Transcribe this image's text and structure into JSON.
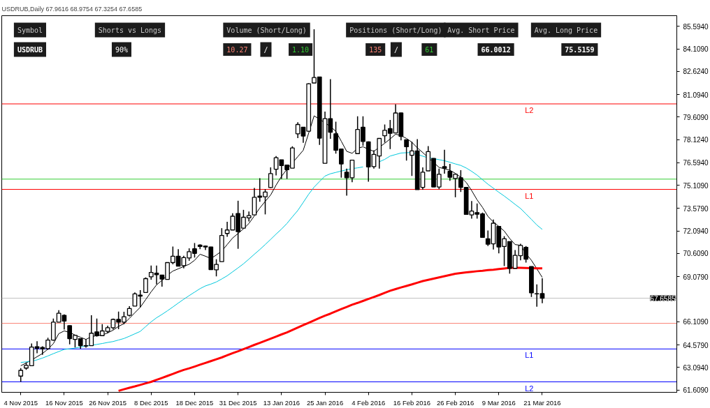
{
  "chart_data": {
    "type": "candlestick",
    "title": "USDRUB,Daily 67.9616 68.9754 67.3254 67.6585",
    "annotations": [
      "Symbol",
      "Shorts vs Longs",
      "Volume (Short/Long)",
      "Positions (Short/Long)",
      "Avg. Short Price",
      "Avg. Long Price",
      "USDRUB",
      "90%",
      "10.27",
      "/",
      "1.10",
      "135",
      "/",
      "61",
      "66.0012",
      "75.5159"
    ],
    "categories": [
      "4 Nov 2015",
      null,
      null,
      null,
      null,
      null,
      null,
      null,
      "16 Nov 2015",
      null,
      null,
      null,
      null,
      null,
      null,
      null,
      "26 Nov 2015",
      null,
      null,
      null,
      null,
      null,
      null,
      null,
      "8 Dec 2015",
      null,
      null,
      null,
      null,
      null,
      null,
      null,
      "18 Dec 2015",
      null,
      null,
      null,
      null,
      null,
      null,
      null,
      "31 Dec 2015",
      null,
      null,
      null,
      null,
      null,
      null,
      null,
      "13 Jan 2016",
      null,
      null,
      null,
      null,
      null,
      null,
      null,
      "25 Jan 2016",
      null,
      null,
      null,
      null,
      null,
      null,
      null,
      "4 Feb 2016",
      null,
      null,
      null,
      null,
      null,
      null,
      null,
      "16 Feb 2016",
      null,
      null,
      null,
      null,
      null,
      null,
      null,
      "26 Feb 2016",
      null,
      null,
      null,
      null,
      null,
      null,
      null,
      "9 Mar 2016",
      null,
      null,
      null,
      null,
      null,
      null,
      null,
      "21 Mar 2016"
    ],
    "ohlc": [
      [
        62.52,
        63.05,
        62.14,
        62.9
      ],
      [
        63.05,
        63.42,
        62.93,
        63.23
      ],
      [
        63.2,
        64.67,
        63.18,
        64.44
      ],
      [
        64.46,
        64.82,
        64.03,
        64.36
      ],
      [
        64.41,
        64.49,
        63.92,
        64.32
      ],
      [
        64.33,
        65.05,
        64.26,
        64.9
      ],
      [
        64.9,
        66.32,
        64.86,
        66.08
      ],
      [
        66.08,
        66.87,
        66.06,
        66.67
      ],
      [
        66.53,
        66.59,
        65.59,
        66.15
      ],
      [
        65.85,
        65.87,
        64.61,
        64.99
      ],
      [
        64.94,
        65.24,
        64.41,
        65.21
      ],
      [
        64.99,
        65.01,
        64.33,
        64.53
      ],
      [
        64.53,
        64.92,
        64.39,
        64.51
      ],
      [
        64.53,
        66.53,
        64.52,
        65.35
      ],
      [
        65.44,
        66.32,
        65.12,
        65.19
      ],
      [
        65.19,
        65.95,
        65.18,
        65.5
      ],
      [
        65.47,
        65.85,
        65.34,
        65.71
      ],
      [
        65.71,
        66.32,
        65.59,
        66.26
      ],
      [
        66.26,
        66.78,
        65.62,
        66.08
      ],
      [
        66.08,
        66.77,
        65.95,
        66.44
      ],
      [
        66.53,
        67.13,
        66.45,
        66.98
      ],
      [
        67.14,
        68.04,
        67.13,
        67.94
      ],
      [
        67.86,
        68.19,
        67.07,
        67.8
      ],
      [
        68.04,
        69.03,
        68.04,
        68.95
      ],
      [
        69.07,
        69.81,
        68.88,
        69.36
      ],
      [
        69.31,
        69.81,
        68.57,
        69.21
      ],
      [
        69.18,
        69.2,
        68.42,
        68.92
      ],
      [
        68.9,
        70.02,
        68.9,
        70.01
      ],
      [
        70.01,
        71.07,
        69.89,
        70.43
      ],
      [
        70.43,
        70.89,
        69.78,
        69.78
      ],
      [
        69.81,
        70.46,
        69.63,
        70.34
      ],
      [
        70.31,
        70.95,
        70.13,
        70.73
      ],
      [
        70.92,
        71.3,
        70.34,
        70.62
      ],
      [
        71.16,
        71.22,
        70.89,
        71.07
      ],
      [
        71.1,
        71.14,
        70.84,
        71.04
      ],
      [
        71.04,
        71.06,
        69.55,
        69.55
      ],
      [
        69.53,
        70.23,
        69.1,
        69.89
      ],
      [
        70.07,
        72.28,
        70.07,
        71.8
      ],
      [
        71.93,
        72.7,
        71.71,
        72.16
      ],
      [
        72.16,
        73.26,
        72.16,
        73.07
      ],
      [
        73.25,
        74.09,
        70.92,
        72.05
      ],
      [
        72.28,
        73.49,
        72.28,
        73.0
      ],
      [
        72.96,
        73.38,
        72.73,
        73.11
      ],
      [
        73.16,
        74.93,
        73.16,
        74.32
      ],
      [
        74.4,
        75.58,
        74.02,
        74.32
      ],
      [
        74.35,
        74.85,
        73.19,
        74.66
      ],
      [
        74.96,
        76.29,
        74.93,
        75.88
      ],
      [
        76.17,
        77.04,
        75.76,
        76.93
      ],
      [
        76.79,
        76.8,
        75.53,
        76.41
      ],
      [
        76.44,
        76.46,
        75.53,
        76.14
      ],
      [
        76.24,
        77.68,
        76.24,
        77.57
      ],
      [
        78.51,
        79.27,
        78.22,
        79.12
      ],
      [
        78.94,
        78.94,
        77.91,
        78.36
      ],
      [
        78.68,
        81.85,
        78.65,
        81.81
      ],
      [
        81.86,
        85.4,
        81.86,
        82.22
      ],
      [
        82.26,
        82.26,
        77.77,
        78.22
      ],
      [
        76.56,
        79.97,
        76.56,
        79.51
      ],
      [
        79.51,
        82.11,
        78.18,
        78.61
      ],
      [
        78.51,
        79.3,
        77.2,
        77.42
      ],
      [
        77.5,
        77.52,
        75.61,
        76.52
      ],
      [
        75.97,
        76.21,
        74.43,
        75.61
      ],
      [
        75.61,
        76.79,
        75.31,
        76.77
      ],
      [
        77.2,
        79.66,
        77.2,
        78.79
      ],
      [
        78.94,
        79.66,
        77.72,
        78.0
      ],
      [
        77.98,
        78.0,
        75.35,
        76.32
      ],
      [
        76.34,
        77.42,
        76.21,
        77.15
      ],
      [
        77.04,
        78.2,
        76.21,
        78.2
      ],
      [
        78.38,
        79.12,
        77.92,
        78.74
      ],
      [
        78.85,
        79.42,
        77.5,
        78.54
      ],
      [
        78.56,
        80.45,
        78.56,
        79.88
      ],
      [
        79.88,
        79.9,
        78.07,
        78.33
      ],
      [
        78.11,
        78.12,
        76.74,
        77.65
      ],
      [
        77.09,
        77.98,
        75.73,
        77.38
      ],
      [
        77.38,
        78.15,
        74.82,
        74.82
      ],
      [
        74.97,
        76.29,
        74.82,
        75.97
      ],
      [
        76.06,
        77.7,
        76.06,
        77.33
      ],
      [
        76.88,
        76.9,
        75.0,
        75.0
      ],
      [
        75.0,
        76.21,
        74.85,
        75.84
      ],
      [
        76.34,
        77.45,
        75.88,
        76.24
      ],
      [
        76.03,
        76.52,
        75.41,
        75.64
      ],
      [
        75.56,
        75.86,
        74.32,
        75.84
      ],
      [
        75.61,
        76.11,
        74.67,
        74.97
      ],
      [
        74.97,
        74.97,
        73.19,
        73.19
      ],
      [
        73.16,
        74.07,
        72.91,
        73.41
      ],
      [
        73.31,
        73.91,
        72.91,
        73.2
      ],
      [
        73.22,
        73.31,
        71.67,
        71.67
      ],
      [
        71.58,
        72.13,
        71.1,
        71.22
      ],
      [
        71.25,
        72.85,
        70.87,
        72.61
      ],
      [
        72.4,
        72.43,
        70.62,
        71.04
      ],
      [
        71.07,
        71.75,
        69.78,
        71.58
      ],
      [
        71.4,
        71.4,
        69.28,
        69.63
      ],
      [
        69.63,
        70.84,
        69.63,
        70.49
      ],
      [
        70.46,
        71.25,
        70.16,
        71.14
      ],
      [
        71.02,
        71.1,
        70.01,
        70.23
      ],
      [
        69.75,
        69.76,
        67.74,
        68.01
      ],
      [
        67.96,
        68.57,
        67.1,
        67.94
      ],
      [
        67.9616,
        68.9754,
        67.3254,
        67.6585
      ]
    ],
    "series": [
      {
        "type": "line",
        "color": "#000000",
        "values": [
          63.2,
          63.39,
          63.58,
          63.8,
          64.01,
          64.3,
          64.66,
          65.32,
          65.5,
          65.4,
          65.23,
          65.08,
          64.94,
          65.12,
          65.19,
          65.23,
          65.37,
          65.55,
          65.8,
          65.98,
          66.33,
          66.7,
          67.06,
          67.57,
          68.08,
          68.54,
          68.84,
          69.18,
          69.45,
          69.6,
          69.75,
          69.9,
          70.16,
          70.56,
          70.43,
          70.28,
          70.51,
          70.77,
          71.2,
          71.63,
          71.93,
          72.24,
          72.59,
          73.09,
          73.61,
          74.05,
          74.47,
          75.12,
          75.7,
          76.17,
          76.59,
          77.0,
          77.42,
          78.55,
          79.69,
          79.47,
          79.23,
          78.99,
          78.67,
          78.02,
          77.35,
          77.22,
          77.55,
          77.65,
          77.49,
          77.35,
          77.62,
          77.88,
          78.17,
          78.48,
          78.39,
          78.2,
          77.95,
          77.58,
          77.27,
          76.94,
          76.62,
          76.29,
          76.2,
          76.1,
          75.9,
          75.64,
          75.3,
          74.76,
          74.15,
          73.65,
          73.06,
          72.68,
          72.4,
          72.09,
          71.6,
          71.2,
          71.15,
          70.6,
          70.16,
          69.6,
          69.03
        ]
      },
      {
        "type": "line",
        "color": "#00c8dc",
        "values": [
          63.42,
          63.46,
          63.5,
          63.59,
          63.71,
          63.85,
          64.0,
          64.14,
          64.28,
          64.32,
          64.37,
          64.44,
          64.5,
          64.55,
          64.61,
          64.67,
          64.74,
          64.8,
          64.9,
          65.0,
          65.15,
          65.31,
          65.47,
          65.79,
          66.1,
          66.37,
          66.59,
          66.83,
          67.08,
          67.34,
          67.59,
          67.83,
          68.06,
          68.29,
          68.47,
          68.59,
          68.73,
          68.93,
          69.14,
          69.4,
          69.66,
          69.93,
          70.24,
          70.56,
          70.87,
          71.2,
          71.54,
          71.89,
          72.22,
          72.59,
          73.03,
          73.45,
          73.98,
          74.52,
          74.99,
          75.36,
          75.72,
          75.87,
          75.96,
          76.05,
          76.13,
          76.21,
          76.26,
          76.32,
          null,
          null,
          76.66,
          76.82,
          77.04,
          77.14,
          77.24,
          77.26,
          77.27,
          77.15,
          77.03,
          76.92,
          76.87,
          76.8,
          76.73,
          76.63,
          76.52,
          76.42,
          76.25,
          76.03,
          75.78,
          75.48,
          75.18,
          74.92,
          74.65,
          74.4,
          74.13,
          73.85,
          73.58,
          73.22,
          72.86,
          72.49,
          72.2
        ]
      },
      {
        "type": "line",
        "color": "#ff0000",
        "values": [
          null,
          null,
          null,
          null,
          null,
          null,
          null,
          null,
          null,
          null,
          null,
          null,
          null,
          null,
          null,
          null,
          null,
          null,
          61.55,
          61.65,
          61.75,
          61.84,
          61.94,
          62.04,
          62.14,
          62.27,
          62.4,
          62.53,
          62.66,
          62.8,
          62.93,
          63.03,
          63.15,
          63.27,
          63.39,
          63.51,
          63.63,
          63.75,
          63.89,
          64.03,
          64.16,
          64.3,
          64.44,
          64.58,
          64.71,
          64.85,
          64.99,
          65.13,
          65.27,
          65.4,
          65.56,
          65.72,
          65.88,
          66.04,
          66.2,
          66.36,
          66.51,
          66.64,
          66.79,
          66.94,
          67.08,
          67.23,
          67.35,
          67.48,
          67.61,
          67.74,
          67.87,
          68.01,
          68.15,
          68.26,
          68.37,
          68.47,
          68.57,
          68.68,
          68.79,
          68.87,
          68.95,
          69.03,
          69.11,
          69.19,
          69.27,
          69.32,
          69.36,
          69.4,
          69.44,
          69.47,
          69.51,
          69.54,
          69.58,
          69.62,
          69.66,
          69.67,
          69.66,
          69.65,
          69.64,
          69.63,
          69.63
        ]
      }
    ],
    "ref_lines": [
      {
        "axis": "y",
        "value": 80.48,
        "label": "L2",
        "color": "#ff0000"
      },
      {
        "axis": "y",
        "value": 74.84,
        "label": "L1",
        "color": "#ff0000"
      },
      {
        "axis": "y",
        "value": 64.31,
        "label": "L1",
        "color": "#0000ff"
      },
      {
        "axis": "y",
        "value": 62.14,
        "label": "L2",
        "color": "#0000ff"
      },
      {
        "axis": "y",
        "value": 75.5159,
        "color": "#32cd32"
      },
      {
        "axis": "y",
        "value": 66.0012,
        "color": "#fa8072"
      },
      {
        "axis": "y",
        "value": 67.6585,
        "label": "67.6585",
        "color": "#c0c0c0"
      }
    ],
    "ylim": [
      61.45,
      86.3
    ],
    "yticks": [
      {
        "value": 61.609,
        "label": "61.6090"
      },
      {
        "value": 63.094,
        "label": "63.0940"
      },
      {
        "value": 64.579,
        "label": "64.5790"
      },
      {
        "value": 66.109,
        "label": "66.1090"
      },
      {
        "value": 69.079,
        "label": "69.0790"
      },
      {
        "value": 70.609,
        "label": "70.6090"
      },
      {
        "value": 72.094,
        "label": "72.0940"
      },
      {
        "value": 73.579,
        "label": "73.5790"
      },
      {
        "value": 75.109,
        "label": "75.1090"
      },
      {
        "value": 76.594,
        "label": "76.5940"
      },
      {
        "value": 78.124,
        "label": "78.1240"
      },
      {
        "value": 79.609,
        "label": "79.6090"
      },
      {
        "value": 81.094,
        "label": "81.0940"
      },
      {
        "value": 82.624,
        "label": "82.6240"
      },
      {
        "value": 84.109,
        "label": "84.1090"
      },
      {
        "value": 85.594,
        "label": "85.5940"
      }
    ],
    "grid": false
  }
}
